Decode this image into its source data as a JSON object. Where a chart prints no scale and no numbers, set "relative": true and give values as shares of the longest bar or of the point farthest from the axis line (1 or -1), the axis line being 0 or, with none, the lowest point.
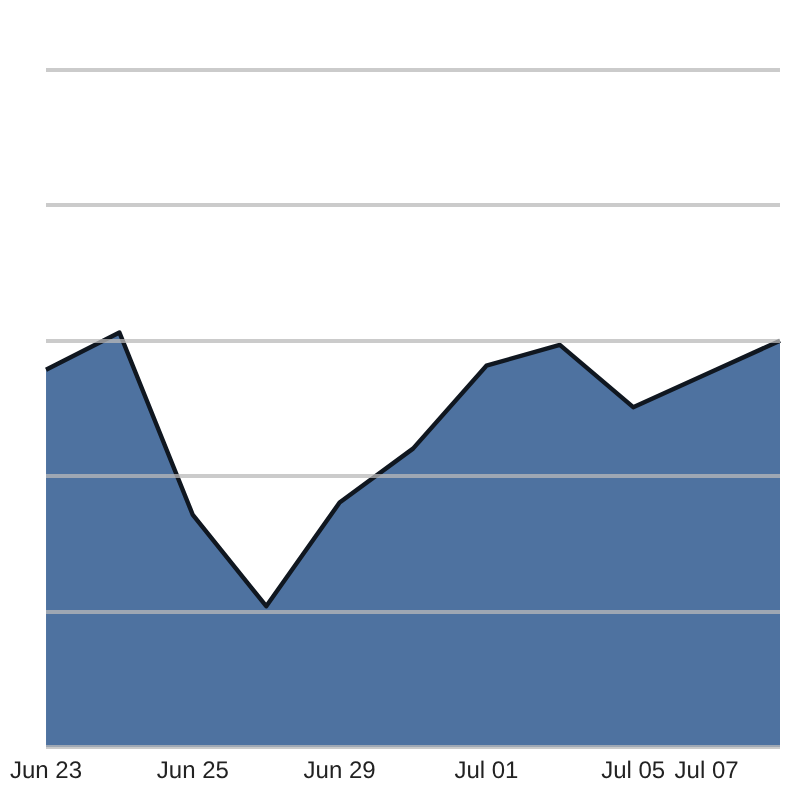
{
  "chart_data": {
    "type": "area",
    "categories": [
      "Jun 23",
      null,
      "Jun 25",
      null,
      "Jun 29",
      null,
      "Jul 01",
      null,
      "Jul 05",
      "Jul 07",
      null
    ],
    "values": [
      0.91,
      1,
      0.56,
      0.34,
      0.59,
      0.72,
      0.92,
      0.97,
      0.82,
      0.9,
      0.98
    ],
    "color": "#4e72a0",
    "relative": true,
    "grid": "y"
  }
}
